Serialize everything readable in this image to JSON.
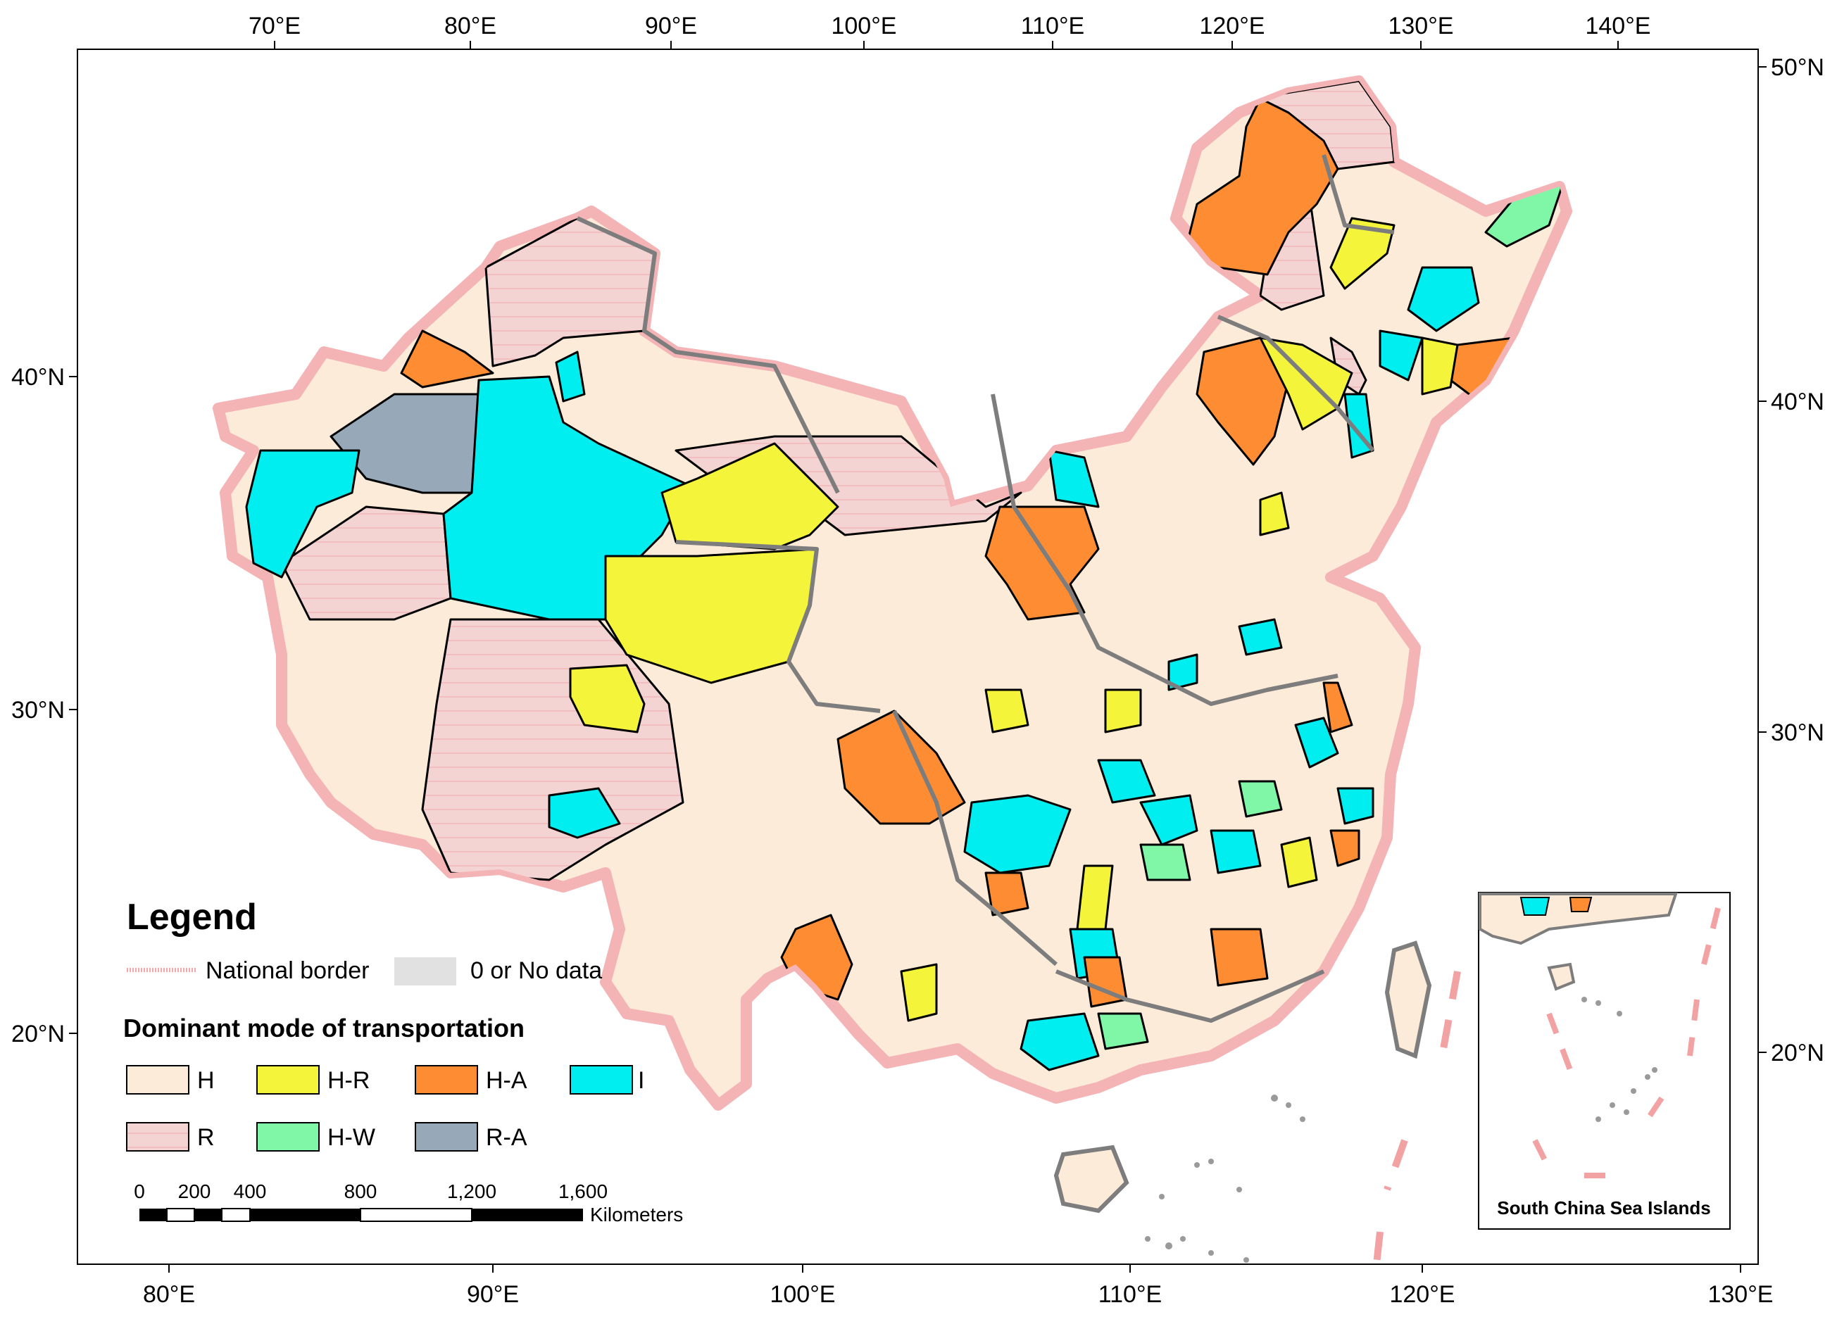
{
  "axes": {
    "top_lon_labels": [
      "70°E",
      "80°E",
      "90°E",
      "100°E",
      "110°E",
      "120°E",
      "130°E",
      "140°E"
    ],
    "bottom_lon_labels": [
      "80°E",
      "90°E",
      "100°E",
      "110°E",
      "120°E",
      "130°E"
    ],
    "left_lat_labels": [
      "40°N",
      "30°N",
      "20°N"
    ],
    "right_lat_labels": [
      "50°N",
      "40°N",
      "30°N",
      "20°N"
    ]
  },
  "legend": {
    "title": "Legend",
    "national_border_label": "National border",
    "no_data_label": "0 or No data",
    "section_title": "Dominant mode of transportation",
    "categories": [
      {
        "code": "H",
        "color": "#fdebd9"
      },
      {
        "code": "H-R",
        "color": "#f4f53b"
      },
      {
        "code": "H-A",
        "color": "#fd8c33"
      },
      {
        "code": "I",
        "color": "#00eef0"
      },
      {
        "code": "R",
        "color": "#f4d3d3"
      },
      {
        "code": "H-W",
        "color": "#80f7a6"
      },
      {
        "code": "R-A",
        "color": "#97a8b9"
      }
    ],
    "no_data_color": "#e1e1e1",
    "border_color": "#f4a7a9"
  },
  "scale_bar": {
    "labels": [
      "0",
      "200",
      "400",
      "800",
      "1,200",
      "1,600"
    ],
    "unit": "Kilometers"
  },
  "inset": {
    "title": "South China Sea Islands"
  }
}
